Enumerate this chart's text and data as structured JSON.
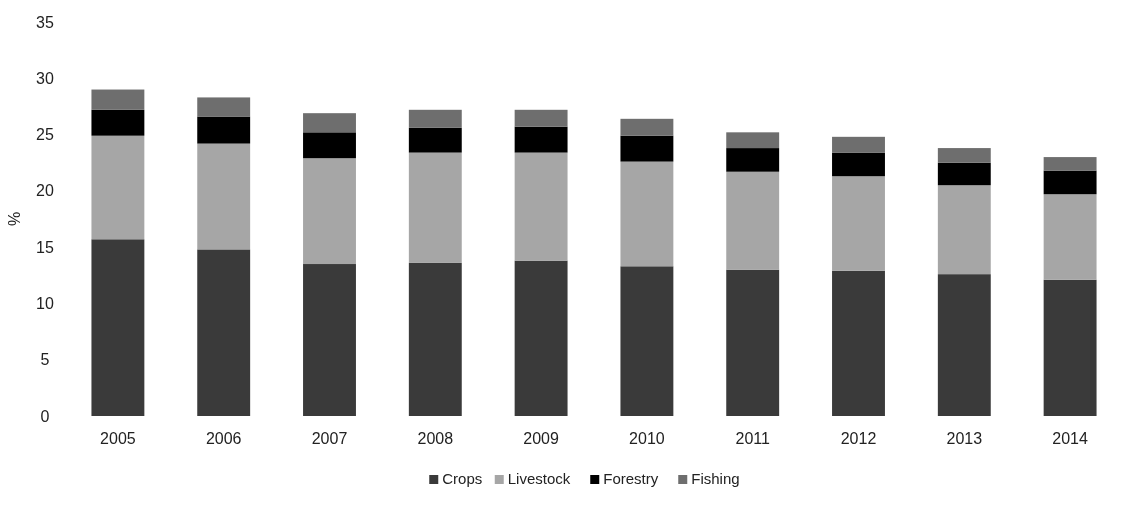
{
  "chart_data": {
    "type": "bar",
    "stacked": true,
    "ylabel": "%",
    "categories": [
      "2005",
      "2006",
      "2007",
      "2008",
      "2009",
      "2010",
      "2011",
      "2012",
      "2013",
      "2014"
    ],
    "series": [
      {
        "name": "Crops",
        "color": "#3a3a3a",
        "values": [
          15.7,
          14.8,
          13.5,
          13.6,
          13.8,
          13.3,
          13.0,
          12.9,
          12.6,
          12.1
        ]
      },
      {
        "name": "Livestock",
        "color": "#a6a6a6",
        "values": [
          9.2,
          9.4,
          9.4,
          9.8,
          9.6,
          9.3,
          8.7,
          8.4,
          7.9,
          7.6
        ]
      },
      {
        "name": "Forestry",
        "color": "#000000",
        "values": [
          2.3,
          2.4,
          2.3,
          2.2,
          2.3,
          2.3,
          2.1,
          2.1,
          2.0,
          2.1
        ]
      },
      {
        "name": "Fishing",
        "color": "#6e6e6e",
        "values": [
          1.8,
          1.7,
          1.7,
          1.6,
          1.5,
          1.5,
          1.4,
          1.4,
          1.3,
          1.2
        ]
      }
    ],
    "ylim": [
      0,
      35
    ],
    "yticks": [
      0,
      5,
      10,
      15,
      20,
      25,
      30,
      35
    ],
    "grid": false,
    "legend": "bottom"
  }
}
